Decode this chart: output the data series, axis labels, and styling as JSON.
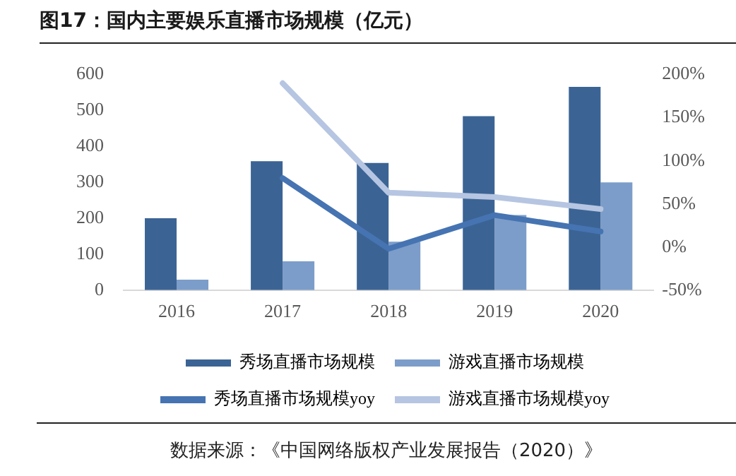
{
  "chart_data": {
    "type": "bar",
    "title": "图17：国内主要娱乐直播市场规模（亿元）",
    "categories": [
      "2016",
      "2017",
      "2018",
      "2019",
      "2020"
    ],
    "series": [
      {
        "name": "秀场直播市场规模",
        "color": "#3b6495",
        "values": [
          200,
          359,
          354,
          484,
          566
        ]
      },
      {
        "name": "游戏直播市场规模",
        "color": "#7c9dc9",
        "values": [
          29,
          80,
          135,
          209,
          300
        ]
      },
      {
        "name": "秀场直播市场规模yoy",
        "type": "line",
        "axis": "y2",
        "color": "#4674b2",
        "values": [
          null,
          80,
          -2,
          37,
          18
        ]
      },
      {
        "name": "游戏直播市场规模yoy",
        "type": "line",
        "axis": "y2",
        "color": "#b6c5e1",
        "values": [
          null,
          190,
          63,
          58,
          44
        ]
      }
    ],
    "ylim": [
      0,
      600
    ],
    "yticks": [
      0,
      100,
      200,
      300,
      400,
      500,
      600
    ],
    "y2lim": [
      -50,
      200
    ],
    "y2ticks": [
      {
        "value": -50,
        "label": "-50%"
      },
      {
        "value": 0,
        "label": "0%"
      },
      {
        "value": 50,
        "label": "50%"
      },
      {
        "value": 100,
        "label": "100%"
      },
      {
        "value": 150,
        "label": "150%"
      },
      {
        "value": 200,
        "label": "200%"
      }
    ],
    "grid": false,
    "legend": "bottom",
    "marker": "none",
    "annotations": [
      "数据来源：《中国网络版权产业发展报告（2020）》"
    ]
  }
}
